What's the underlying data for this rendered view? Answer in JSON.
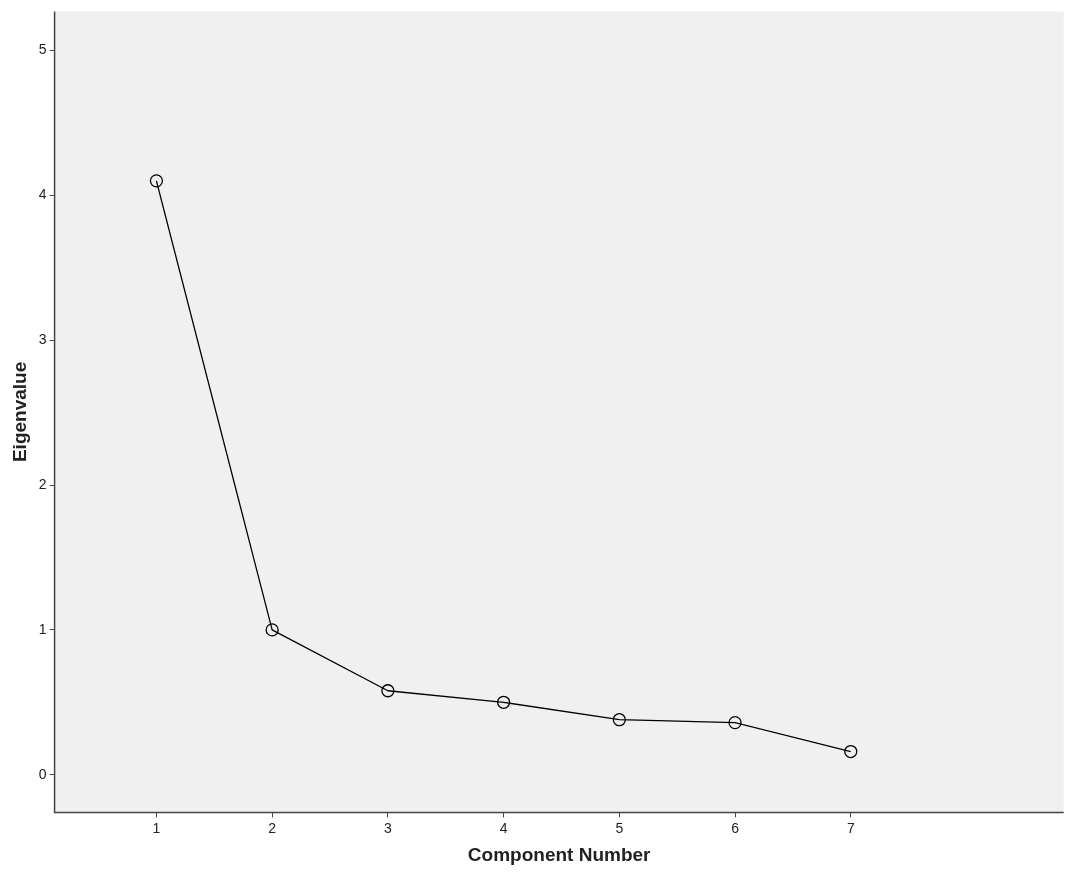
{
  "chart_data": {
    "type": "line",
    "xlabel": "Component Number",
    "ylabel": "Eigenvalue",
    "x": [
      1,
      2,
      3,
      4,
      5,
      6,
      7
    ],
    "series": [
      {
        "color": "#000000",
        "values": [
          4.1,
          1.0,
          0.58,
          0.5,
          0.38,
          0.36,
          0.16
        ]
      }
    ],
    "xlim": [
      0.12,
      8.84
    ],
    "xticks": [
      1,
      2,
      3,
      4,
      5,
      6,
      7
    ],
    "ylim": [
      -0.26,
      5.27
    ],
    "yticks": [
      0,
      1,
      2,
      3,
      4,
      5
    ],
    "marker": "circle",
    "line_style": "solid",
    "grid": false,
    "legend": false
  }
}
